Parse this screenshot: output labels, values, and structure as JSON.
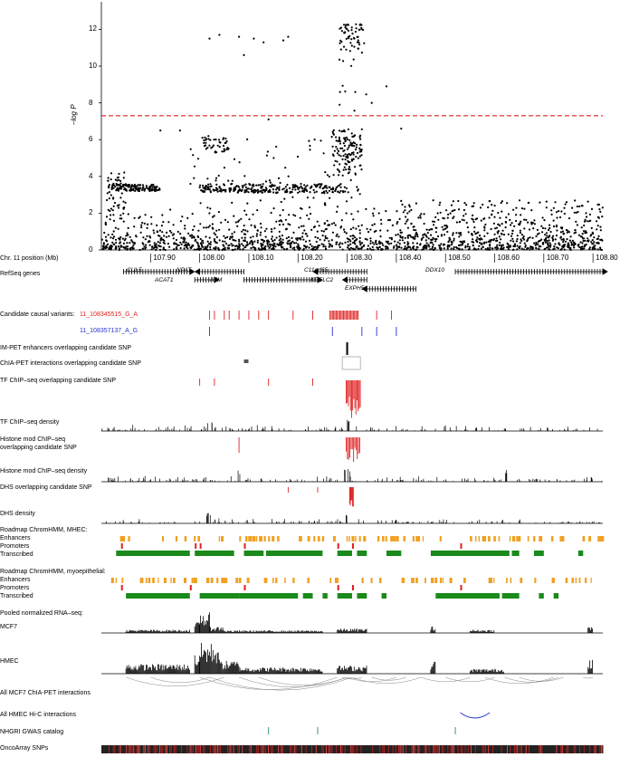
{
  "chart_data": {
    "type": "scatter",
    "ylabel": "–log P",
    "ylim": [
      0,
      13.5
    ],
    "y_ticks": [
      "0",
      "2",
      "4",
      "6",
      "8",
      "10",
      "12"
    ],
    "significance_threshold": 7.3,
    "threshold_color": "#e02020",
    "xlim": [
      107.8,
      108.82
    ],
    "x_ticks": [
      "107.90",
      "108.00",
      "108.10",
      "108.20",
      "108.30",
      "108.40",
      "108.50",
      "108.60",
      "108.70",
      "108.80"
    ],
    "peak_region": [
      108.28,
      108.33
    ],
    "peak_max": 12.3
  },
  "labels": {
    "position": "Chr. 11 position (Mb)",
    "refseq": "RefSeq genes",
    "candidate": "Candidate causal variants:",
    "variant1": "11_108345515_G_A",
    "variant2": "11_108357137_A_G",
    "impet": "IM-PET enhancers overlapping candidate SNP",
    "chiapet": "ChIA-PET interactions overlapping candidate SNP",
    "tfchip": "TF ChIP–seq overlapping candidate SNP",
    "tfdensity": "TF ChIP–seq density",
    "histone1": "Histone mod ChIP–seq",
    "histone2": "overlapping candidate SNP",
    "histdensity": "Histone mod ChIP–seq density",
    "dhs": "DHS overlapping candidate SNP",
    "dhsdensity": "DHS density",
    "roadmap_mhec": "Roadmap ChromHMM, MHEC:",
    "enhancers": "Enhancers",
    "promoters": "Promoters",
    "transcribed": "Transcribed",
    "roadmap_myo": "Roadmap ChromHMM, myoepithelial:",
    "enhancers2": "Enhancers",
    "promoters2": "Promoters",
    "transcribed2": "Transcribed",
    "rnaseq": "Pooled normalized RNA–seq:",
    "mcf7": "MCF7",
    "hmec": "HMEC",
    "mcf7chia": "All MCF7 ChIA-PET interactions",
    "hmechic": "All HMEC Hi-C interactions",
    "gwas": "NHGRI GWAS catalog",
    "oncoarray": "OncoArray SNPs"
  },
  "genes": {
    "cul5": "CUL5",
    "acat1": "ACAT1",
    "npat": "NPAT",
    "atm": "ATM",
    "c11orf65": "C11orf65",
    "kdelc2": "KDELC2",
    "exph5": "EXPH5",
    "ddx10": "DDX10"
  },
  "colors": {
    "red": "#e02020",
    "blue": "#2233cc",
    "orange": "#f0a020",
    "green": "#1a8a1a"
  }
}
